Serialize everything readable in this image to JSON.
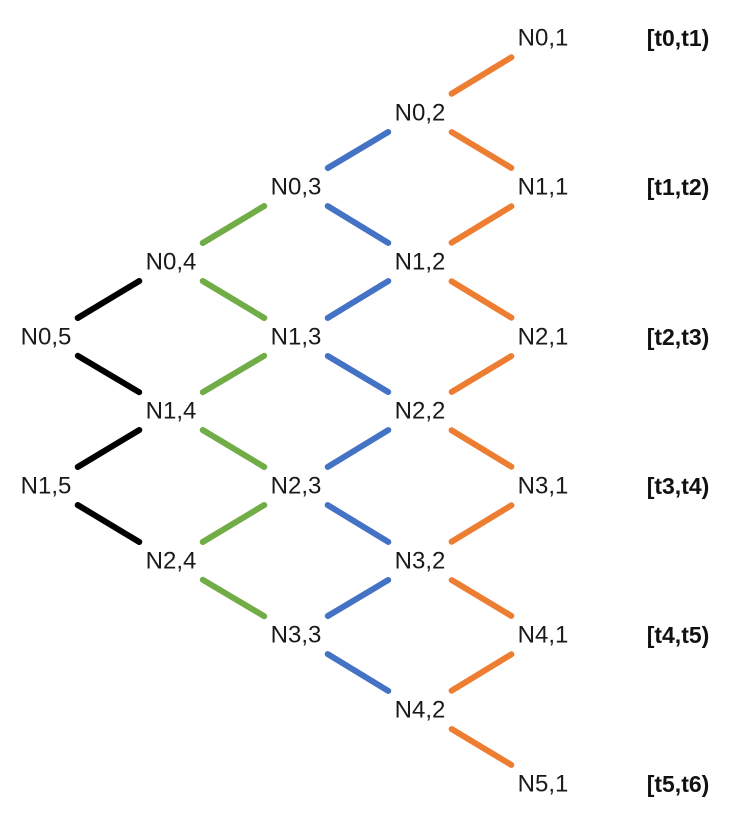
{
  "colors": {
    "orange": "#ed7d31",
    "blue": "#4472c4",
    "green": "#70ad47",
    "black": "#000000"
  },
  "nodes": [
    {
      "id": "N0,1",
      "label": "N0,1"
    },
    {
      "id": "N0,2",
      "label": "N0,2"
    },
    {
      "id": "N1,1",
      "label": "N1,1"
    },
    {
      "id": "N0,3",
      "label": "N0,3"
    },
    {
      "id": "N1,2",
      "label": "N1,2"
    },
    {
      "id": "N2,1",
      "label": "N2,1"
    },
    {
      "id": "N0,4",
      "label": "N0,4"
    },
    {
      "id": "N1,3",
      "label": "N1,3"
    },
    {
      "id": "N2,2",
      "label": "N2,2"
    },
    {
      "id": "N3,1",
      "label": "N3,1"
    },
    {
      "id": "N0,5",
      "label": "N0,5"
    },
    {
      "id": "N1,4",
      "label": "N1,4"
    },
    {
      "id": "N2,3",
      "label": "N2,3"
    },
    {
      "id": "N3,2",
      "label": "N3,2"
    },
    {
      "id": "N4,1",
      "label": "N4,1"
    },
    {
      "id": "N1,5",
      "label": "N1,5"
    },
    {
      "id": "N2,4",
      "label": "N2,4"
    },
    {
      "id": "N3,3",
      "label": "N3,3"
    },
    {
      "id": "N4,2",
      "label": "N4,2"
    },
    {
      "id": "N5,1",
      "label": "N5,1"
    }
  ],
  "edges": [
    {
      "from": "N0,1",
      "to": "N0,2",
      "color": "orange"
    },
    {
      "from": "N0,2",
      "to": "N1,1",
      "color": "orange"
    },
    {
      "from": "N1,1",
      "to": "N1,2",
      "color": "orange"
    },
    {
      "from": "N1,2",
      "to": "N2,1",
      "color": "orange"
    },
    {
      "from": "N2,1",
      "to": "N2,2",
      "color": "orange"
    },
    {
      "from": "N2,2",
      "to": "N3,1",
      "color": "orange"
    },
    {
      "from": "N3,1",
      "to": "N3,2",
      "color": "orange"
    },
    {
      "from": "N3,2",
      "to": "N4,1",
      "color": "orange"
    },
    {
      "from": "N4,1",
      "to": "N4,2",
      "color": "orange"
    },
    {
      "from": "N4,2",
      "to": "N5,1",
      "color": "orange"
    },
    {
      "from": "N0,2",
      "to": "N0,3",
      "color": "blue"
    },
    {
      "from": "N0,3",
      "to": "N1,2",
      "color": "blue"
    },
    {
      "from": "N1,2",
      "to": "N1,3",
      "color": "blue"
    },
    {
      "from": "N1,3",
      "to": "N2,2",
      "color": "blue"
    },
    {
      "from": "N2,2",
      "to": "N2,3",
      "color": "blue"
    },
    {
      "from": "N2,3",
      "to": "N3,2",
      "color": "blue"
    },
    {
      "from": "N3,2",
      "to": "N3,3",
      "color": "blue"
    },
    {
      "from": "N3,3",
      "to": "N4,2",
      "color": "blue"
    },
    {
      "from": "N0,3",
      "to": "N0,4",
      "color": "green"
    },
    {
      "from": "N0,4",
      "to": "N1,3",
      "color": "green"
    },
    {
      "from": "N1,3",
      "to": "N1,4",
      "color": "green"
    },
    {
      "from": "N1,4",
      "to": "N2,3",
      "color": "green"
    },
    {
      "from": "N2,3",
      "to": "N2,4",
      "color": "green"
    },
    {
      "from": "N2,4",
      "to": "N3,3",
      "color": "green"
    },
    {
      "from": "N0,4",
      "to": "N0,5",
      "color": "black"
    },
    {
      "from": "N0,5",
      "to": "N1,4",
      "color": "black"
    },
    {
      "from": "N1,4",
      "to": "N1,5",
      "color": "black"
    },
    {
      "from": "N1,5",
      "to": "N2,4",
      "color": "black"
    }
  ],
  "intervals": [
    {
      "label": "[t0,t1)"
    },
    {
      "label": "[t1,t2)"
    },
    {
      "label": "[t2,t3)"
    },
    {
      "label": "[t3,t4)"
    },
    {
      "label": "[t4,t5)"
    },
    {
      "label": "[t5,t6)"
    }
  ]
}
